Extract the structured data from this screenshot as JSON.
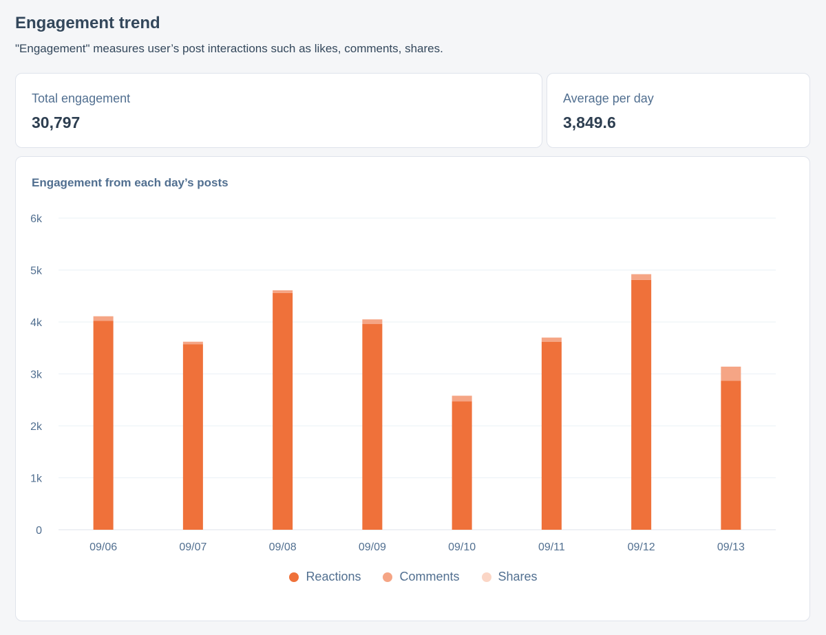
{
  "header": {
    "title": "Engagement trend",
    "subtitle": "\"Engagement\" measures user’s post interactions such as likes, comments, shares."
  },
  "kpis": {
    "total": {
      "label": "Total engagement",
      "value": "30,797"
    },
    "average": {
      "label": "Average per day",
      "value": "3,849.6"
    }
  },
  "chart_data": {
    "type": "bar",
    "stacked": true,
    "title": "Engagement from each day’s posts",
    "xlabel": "",
    "ylabel": "",
    "ylim": [
      0,
      6000
    ],
    "yticks": [
      0,
      1000,
      2000,
      3000,
      4000,
      5000,
      6000
    ],
    "ytick_labels": [
      "0",
      "1k",
      "2k",
      "3k",
      "4k",
      "5k",
      "6k"
    ],
    "grid": true,
    "legend_position": "bottom",
    "categories": [
      "09/06",
      "09/07",
      "09/08",
      "09/09",
      "09/10",
      "09/11",
      "09/12",
      "09/13"
    ],
    "series": [
      {
        "name": "Reactions",
        "color": "#ef713a",
        "values": [
          4020,
          3570,
          4560,
          3960,
          2470,
          3620,
          4810,
          2870
        ]
      },
      {
        "name": "Comments",
        "color": "#f5a585",
        "values": [
          90,
          50,
          50,
          90,
          110,
          80,
          110,
          270
        ]
      },
      {
        "name": "Shares",
        "color": "#fbd6c6",
        "values": [
          0,
          0,
          0,
          0,
          0,
          0,
          0,
          0
        ]
      }
    ]
  }
}
